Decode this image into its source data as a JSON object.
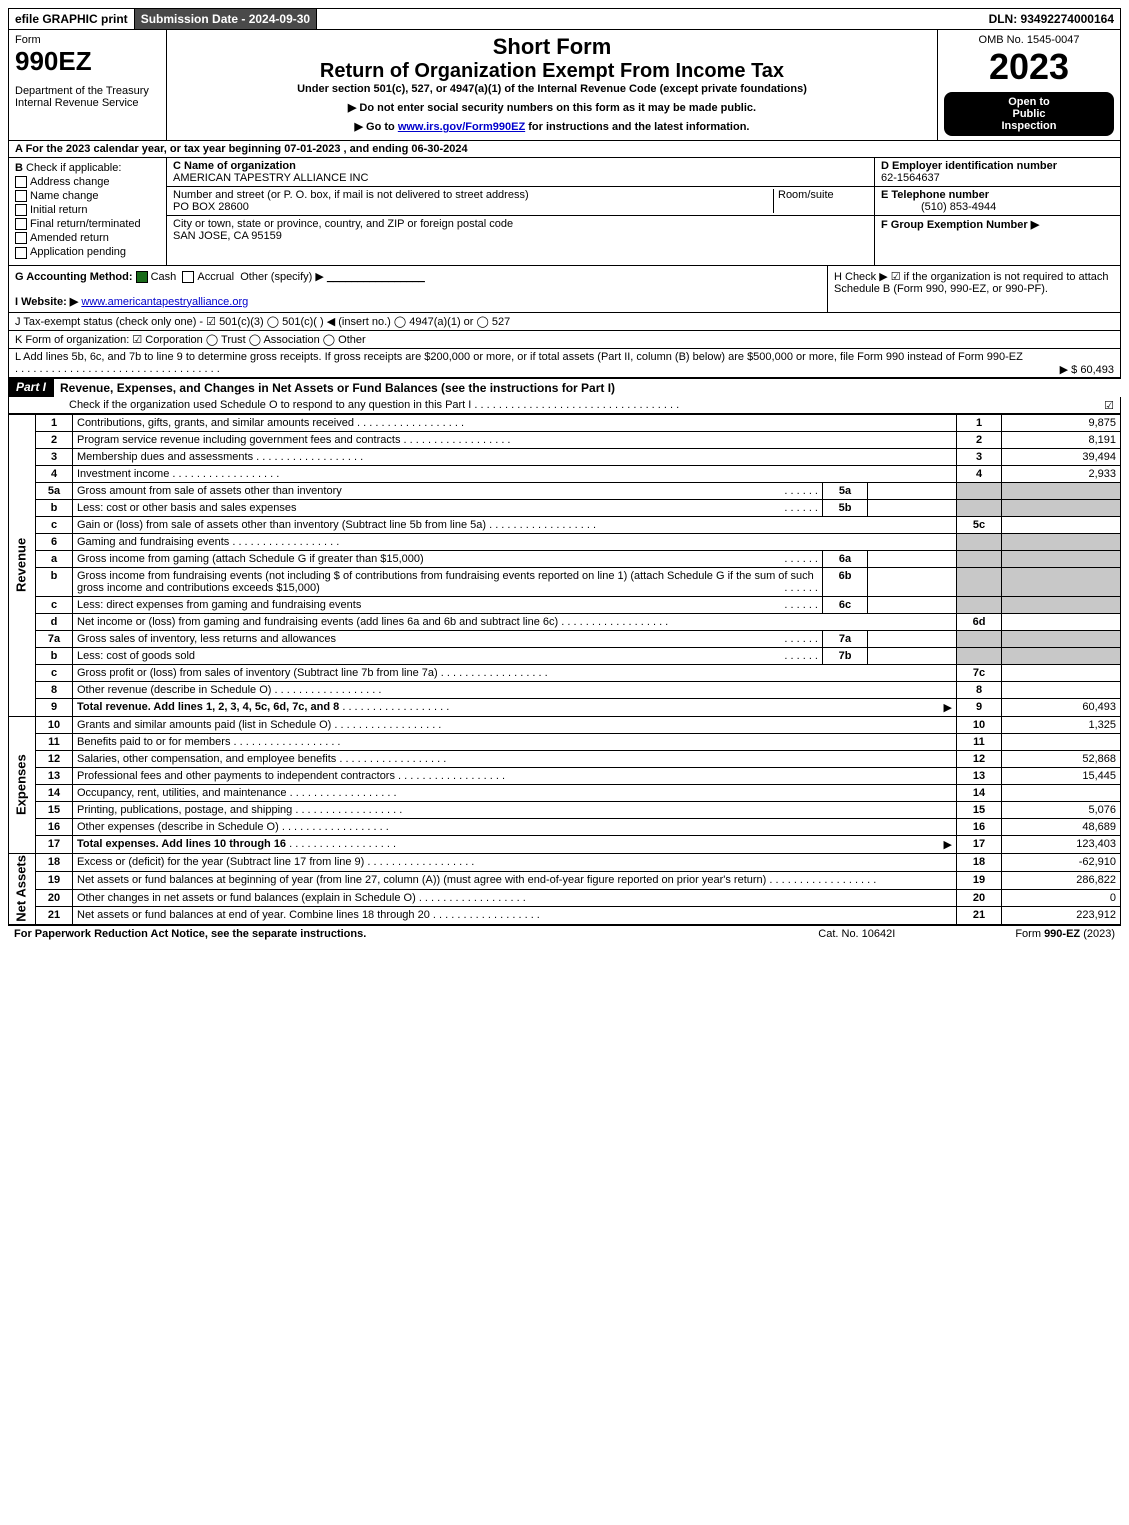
{
  "topbar": {
    "efile": "efile GRAPHIC print",
    "submission": "Submission Date - 2024-09-30",
    "dln": "DLN: 93492274000164"
  },
  "header": {
    "form_word": "Form",
    "form_number": "990EZ",
    "dept1": "Department of the Treasury",
    "dept2": "Internal Revenue Service",
    "short_form": "Short Form",
    "return_title": "Return of Organization Exempt From Income Tax",
    "under_section": "Under section 501(c), 527, or 4947(a)(1) of the Internal Revenue Code (except private foundations)",
    "instr1": "▶ Do not enter social security numbers on this form as it may be made public.",
    "instr2_pre": "▶ Go to ",
    "instr2_link": "www.irs.gov/Form990EZ",
    "instr2_post": " for instructions and the latest information.",
    "omb": "OMB No. 1545-0047",
    "year": "2023",
    "open1": "Open to",
    "open2": "Public",
    "open3": "Inspection"
  },
  "lineA": "A  For the 2023 calendar year, or tax year beginning 07-01-2023 , and ending 06-30-2024",
  "sectionB": {
    "title": "B",
    "subtitle": "Check if applicable:",
    "opts": [
      "Address change",
      "Name change",
      "Initial return",
      "Final return/terminated",
      "Amended return",
      "Application pending"
    ]
  },
  "sectionC": {
    "c_label": "C Name of organization",
    "org_name": "AMERICAN TAPESTRY ALLIANCE INC",
    "addr_label": "Number and street (or P. O. box, if mail is not delivered to street address)",
    "room_label": "Room/suite",
    "addr": "PO BOX 28600",
    "city_label": "City or town, state or province, country, and ZIP or foreign postal code",
    "city": "SAN JOSE, CA  95159"
  },
  "sectionDEF": {
    "d_label": "D Employer identification number",
    "ein": "62-1564637",
    "e_label": "E Telephone number",
    "phone": "(510) 853-4944",
    "f_label": "F Group Exemption Number  ▶"
  },
  "lineG": {
    "label": "G Accounting Method:",
    "cash": "Cash",
    "accrual": "Accrual",
    "other": "Other (specify) ▶",
    "blank": "________________"
  },
  "lineH": "H  Check ▶ ☑ if the organization is not required to attach Schedule B (Form 990, 990-EZ, or 990-PF).",
  "lineI": {
    "label": "I Website: ▶",
    "url": "www.americantapestryalliance.org"
  },
  "lineJ": "J Tax-exempt status (check only one) - ☑ 501(c)(3)  ◯ 501(c)(  ) ◀ (insert no.)  ◯ 4947(a)(1) or  ◯ 527",
  "lineK": "K Form of organization:  ☑ Corporation  ◯ Trust  ◯ Association  ◯ Other",
  "lineL": {
    "text": "L Add lines 5b, 6c, and 7b to line 9 to determine gross receipts. If gross receipts are $200,000 or more, or if total assets (Part II, column (B) below) are $500,000 or more, file Form 990 instead of Form 990-EZ",
    "amount": "▶ $ 60,493"
  },
  "partI": {
    "label": "Part I",
    "title": "Revenue, Expenses, and Changes in Net Assets or Fund Balances (see the instructions for Part I)",
    "sub": "Check if the organization used Schedule O to respond to any question in this Part I",
    "checked": "☑"
  },
  "sections": {
    "revenue": "Revenue",
    "expenses": "Expenses",
    "netassets": "Net Assets"
  },
  "rows": [
    {
      "ln": "1",
      "desc": "Contributions, gifts, grants, and similar amounts received",
      "sn": "1",
      "amt": "9,875"
    },
    {
      "ln": "2",
      "desc": "Program service revenue including government fees and contracts",
      "sn": "2",
      "amt": "8,191"
    },
    {
      "ln": "3",
      "desc": "Membership dues and assessments",
      "sn": "3",
      "amt": "39,494"
    },
    {
      "ln": "4",
      "desc": "Investment income",
      "sn": "4",
      "amt": "2,933"
    },
    {
      "ln": "5a",
      "desc": "Gross amount from sale of assets other than inventory",
      "sub_sn": "5a",
      "sub_amt": "",
      "grey": true
    },
    {
      "ln": "b",
      "desc": "Less: cost or other basis and sales expenses",
      "sub_sn": "5b",
      "sub_amt": "",
      "grey": true
    },
    {
      "ln": "c",
      "desc": "Gain or (loss) from sale of assets other than inventory (Subtract line 5b from line 5a)",
      "sn": "5c",
      "amt": ""
    },
    {
      "ln": "6",
      "desc": "Gaming and fundraising events",
      "sn": "",
      "amt": "",
      "grey": true,
      "nosub": true
    },
    {
      "ln": "a",
      "desc": "Gross income from gaming (attach Schedule G if greater than $15,000)",
      "sub_sn": "6a",
      "sub_amt": "",
      "grey": true
    },
    {
      "ln": "b",
      "desc": "Gross income from fundraising events (not including $                    of contributions from fundraising events reported on line 1) (attach Schedule G if the sum of such gross income and contributions exceeds $15,000)",
      "sub_sn": "6b",
      "sub_amt": "",
      "grey": true
    },
    {
      "ln": "c",
      "desc": "Less: direct expenses from gaming and fundraising events",
      "sub_sn": "6c",
      "sub_amt": "",
      "grey": true
    },
    {
      "ln": "d",
      "desc": "Net income or (loss) from gaming and fundraising events (add lines 6a and 6b and subtract line 6c)",
      "sn": "6d",
      "amt": ""
    },
    {
      "ln": "7a",
      "desc": "Gross sales of inventory, less returns and allowances",
      "sub_sn": "7a",
      "sub_amt": "",
      "grey": true
    },
    {
      "ln": "b",
      "desc": "Less: cost of goods sold",
      "sub_sn": "7b",
      "sub_amt": "",
      "grey": true
    },
    {
      "ln": "c",
      "desc": "Gross profit or (loss) from sales of inventory (Subtract line 7b from line 7a)",
      "sn": "7c",
      "amt": ""
    },
    {
      "ln": "8",
      "desc": "Other revenue (describe in Schedule O)",
      "sn": "8",
      "amt": ""
    },
    {
      "ln": "9",
      "desc": "Total revenue. Add lines 1, 2, 3, 4, 5c, 6d, 7c, and 8",
      "sn": "9",
      "amt": "60,493",
      "bold": true,
      "arrow": true
    }
  ],
  "exp_rows": [
    {
      "ln": "10",
      "desc": "Grants and similar amounts paid (list in Schedule O)",
      "sn": "10",
      "amt": "1,325"
    },
    {
      "ln": "11",
      "desc": "Benefits paid to or for members",
      "sn": "11",
      "amt": ""
    },
    {
      "ln": "12",
      "desc": "Salaries, other compensation, and employee benefits",
      "sn": "12",
      "amt": "52,868"
    },
    {
      "ln": "13",
      "desc": "Professional fees and other payments to independent contractors",
      "sn": "13",
      "amt": "15,445"
    },
    {
      "ln": "14",
      "desc": "Occupancy, rent, utilities, and maintenance",
      "sn": "14",
      "amt": ""
    },
    {
      "ln": "15",
      "desc": "Printing, publications, postage, and shipping",
      "sn": "15",
      "amt": "5,076"
    },
    {
      "ln": "16",
      "desc": "Other expenses (describe in Schedule O)",
      "sn": "16",
      "amt": "48,689"
    },
    {
      "ln": "17",
      "desc": "Total expenses. Add lines 10 through 16",
      "sn": "17",
      "amt": "123,403",
      "bold": true,
      "arrow": true
    }
  ],
  "na_rows": [
    {
      "ln": "18",
      "desc": "Excess or (deficit) for the year (Subtract line 17 from line 9)",
      "sn": "18",
      "amt": "-62,910"
    },
    {
      "ln": "19",
      "desc": "Net assets or fund balances at beginning of year (from line 27, column (A)) (must agree with end-of-year figure reported on prior year's return)",
      "sn": "19",
      "amt": "286,822"
    },
    {
      "ln": "20",
      "desc": "Other changes in net assets or fund balances (explain in Schedule O)",
      "sn": "20",
      "amt": "0"
    },
    {
      "ln": "21",
      "desc": "Net assets or fund balances at end of year. Combine lines 18 through 20",
      "sn": "21",
      "amt": "223,912"
    }
  ],
  "footer": {
    "left": "For Paperwork Reduction Act Notice, see the separate instructions.",
    "center": "Cat. No. 10642I",
    "right_pre": "Form ",
    "right_bold": "990-EZ",
    "right_post": " (2023)"
  }
}
